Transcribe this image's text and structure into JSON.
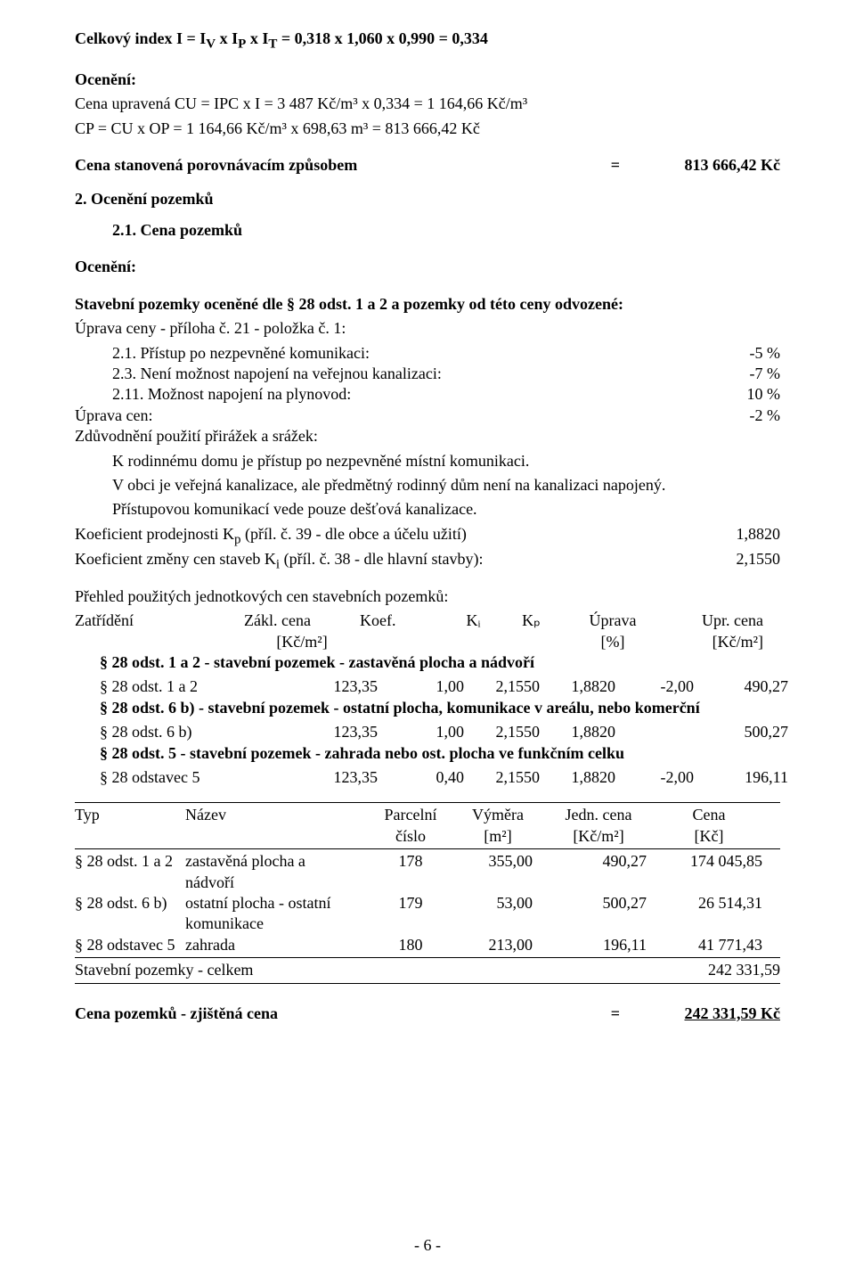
{
  "index_line": "Celkový index I = I",
  "index_sub1": "V",
  "index_mid1": " x I",
  "index_sub2": "P",
  "index_mid2": " x I",
  "index_sub3": "T",
  "index_rest": " = 0,318 x 1,060 x 0,990 = 0,334",
  "oceneni_label": "Ocenění:",
  "cu_line": "Cena upravená CU = IPC x I = 3 487 Kč/m³ x 0,334 = 1 164,66 Kč/m³",
  "cp_line": "CP = CU x OP = 1 164,66 Kč/m³ x 698,63 m³ = 813 666,42 Kč",
  "stanovena": {
    "label": "Cena stanovená porovnávacím způsobem",
    "eq": "=",
    "value": "813 666,42 Kč"
  },
  "oceneni_pozemku": "2. Ocenění pozemků",
  "cena_pozemku": "2.1. Cena pozemků",
  "stavebni_line": "Stavební pozemky oceněné dle § 28 odst. 1 a 2 a pozemky od této ceny odvozené:",
  "uprava_ceny": "Úprava ceny - příloha č. 21 - položka č. 1:",
  "adj": [
    {
      "label": "2.1. Přístup po nezpevněné komunikaci:",
      "val": "-5 %"
    },
    {
      "label": "2.3. Není možnost napojení na veřejnou kanalizaci:",
      "val": "-7 %"
    },
    {
      "label": "2.11. Možnost napojení na plynovod:",
      "val": "10 %"
    }
  ],
  "uprava_cen": {
    "label": "Úprava cen:",
    "val": "-2 %"
  },
  "zduvodneni": "Zdůvodnění použití přirážek a srážek:",
  "body1": "K rodinnému domu je přístup po nezpevněné místní komunikaci.",
  "body2": "V obci je veřejná kanalizace, ale předmětný rodinný dům není na kanalizaci napojený.",
  "body3": "Přístupovou komunikací vede pouze dešťová kanalizace.",
  "kp": {
    "label_pre": "Koeficient prodejnosti K",
    "sub": "p",
    "label_post": " (příl. č. 39 - dle obce a účelu užití)",
    "val": "1,8820"
  },
  "ki": {
    "label_pre": "Koeficient změny cen staveb K",
    "sub": "i",
    "label_post": " (příl. č. 38 - dle hlavní stavby):",
    "val": "2,1550"
  },
  "prehled_title": "Přehled použitých jednotkových cen stavebních pozemků:",
  "prehled_head": [
    "Zatřídění",
    "Zákl. cena",
    "Koef.",
    "Kᵢ",
    "Kₚ",
    "Úprava",
    "Upr. cena"
  ],
  "prehled_sub": [
    "",
    "[Kč/m²]",
    "",
    "",
    "",
    "[%]",
    "[Kč/m²]"
  ],
  "sec1_title": "§ 28 odst. 1 a 2 - stavební pozemek - zastavěná plocha a nádvoří",
  "sec1_row": [
    "§ 28 odst. 1 a 2",
    "123,35",
    "1,00",
    "2,1550",
    "1,8820",
    "-2,00",
    "490,27"
  ],
  "sec2_title": "§ 28 odst. 6 b) - stavební pozemek - ostatní plocha, komunikace v areálu, nebo komerční",
  "sec2_row": [
    "§ 28 odst. 6 b)",
    "123,35",
    "1,00",
    "2,1550",
    "1,8820",
    "",
    "500,27"
  ],
  "sec3_title": "§ 28 odst. 5 - stavební pozemek - zahrada nebo ost. plocha ve funkčním celku",
  "sec3_row": [
    "§ 28 odstavec 5",
    "123,35",
    "0,40",
    "2,1550",
    "1,8820",
    "-2,00",
    "196,11"
  ],
  "tbl2_head1": [
    "Typ",
    "Název",
    "Parcelní",
    "Výměra",
    "Jedn. cena",
    "Cena"
  ],
  "tbl2_head2": [
    "",
    "",
    "číslo",
    "[m²]",
    "[Kč/m²]",
    "[Kč]"
  ],
  "tbl2_rows": [
    {
      "typ": "§ 28 odst. 1 a 2",
      "nazev1": "zastavěná plocha a",
      "nazev2": "nádvoří",
      "pc": "178",
      "vym": "355,00",
      "jc": "490,27",
      "cena": "174 045,85"
    },
    {
      "typ": "§ 28 odst. 6 b)",
      "nazev1": "ostatní plocha - ostatní",
      "nazev2": "komunikace",
      "pc": "179",
      "vym": "53,00",
      "jc": "500,27",
      "cena": "26 514,31"
    },
    {
      "typ": "§ 28 odstavec 5",
      "nazev1": "zahrada",
      "nazev2": "",
      "pc": "180",
      "vym": "213,00",
      "jc": "196,11",
      "cena": "41 771,43"
    }
  ],
  "tbl2_sum": {
    "label": "Stavební pozemky - celkem",
    "val": "242 331,59"
  },
  "final": {
    "label": "Cena pozemků - zjištěná cena",
    "eq": "=",
    "val": "242 331,59 Kč"
  },
  "pagenum": "- 6 -"
}
